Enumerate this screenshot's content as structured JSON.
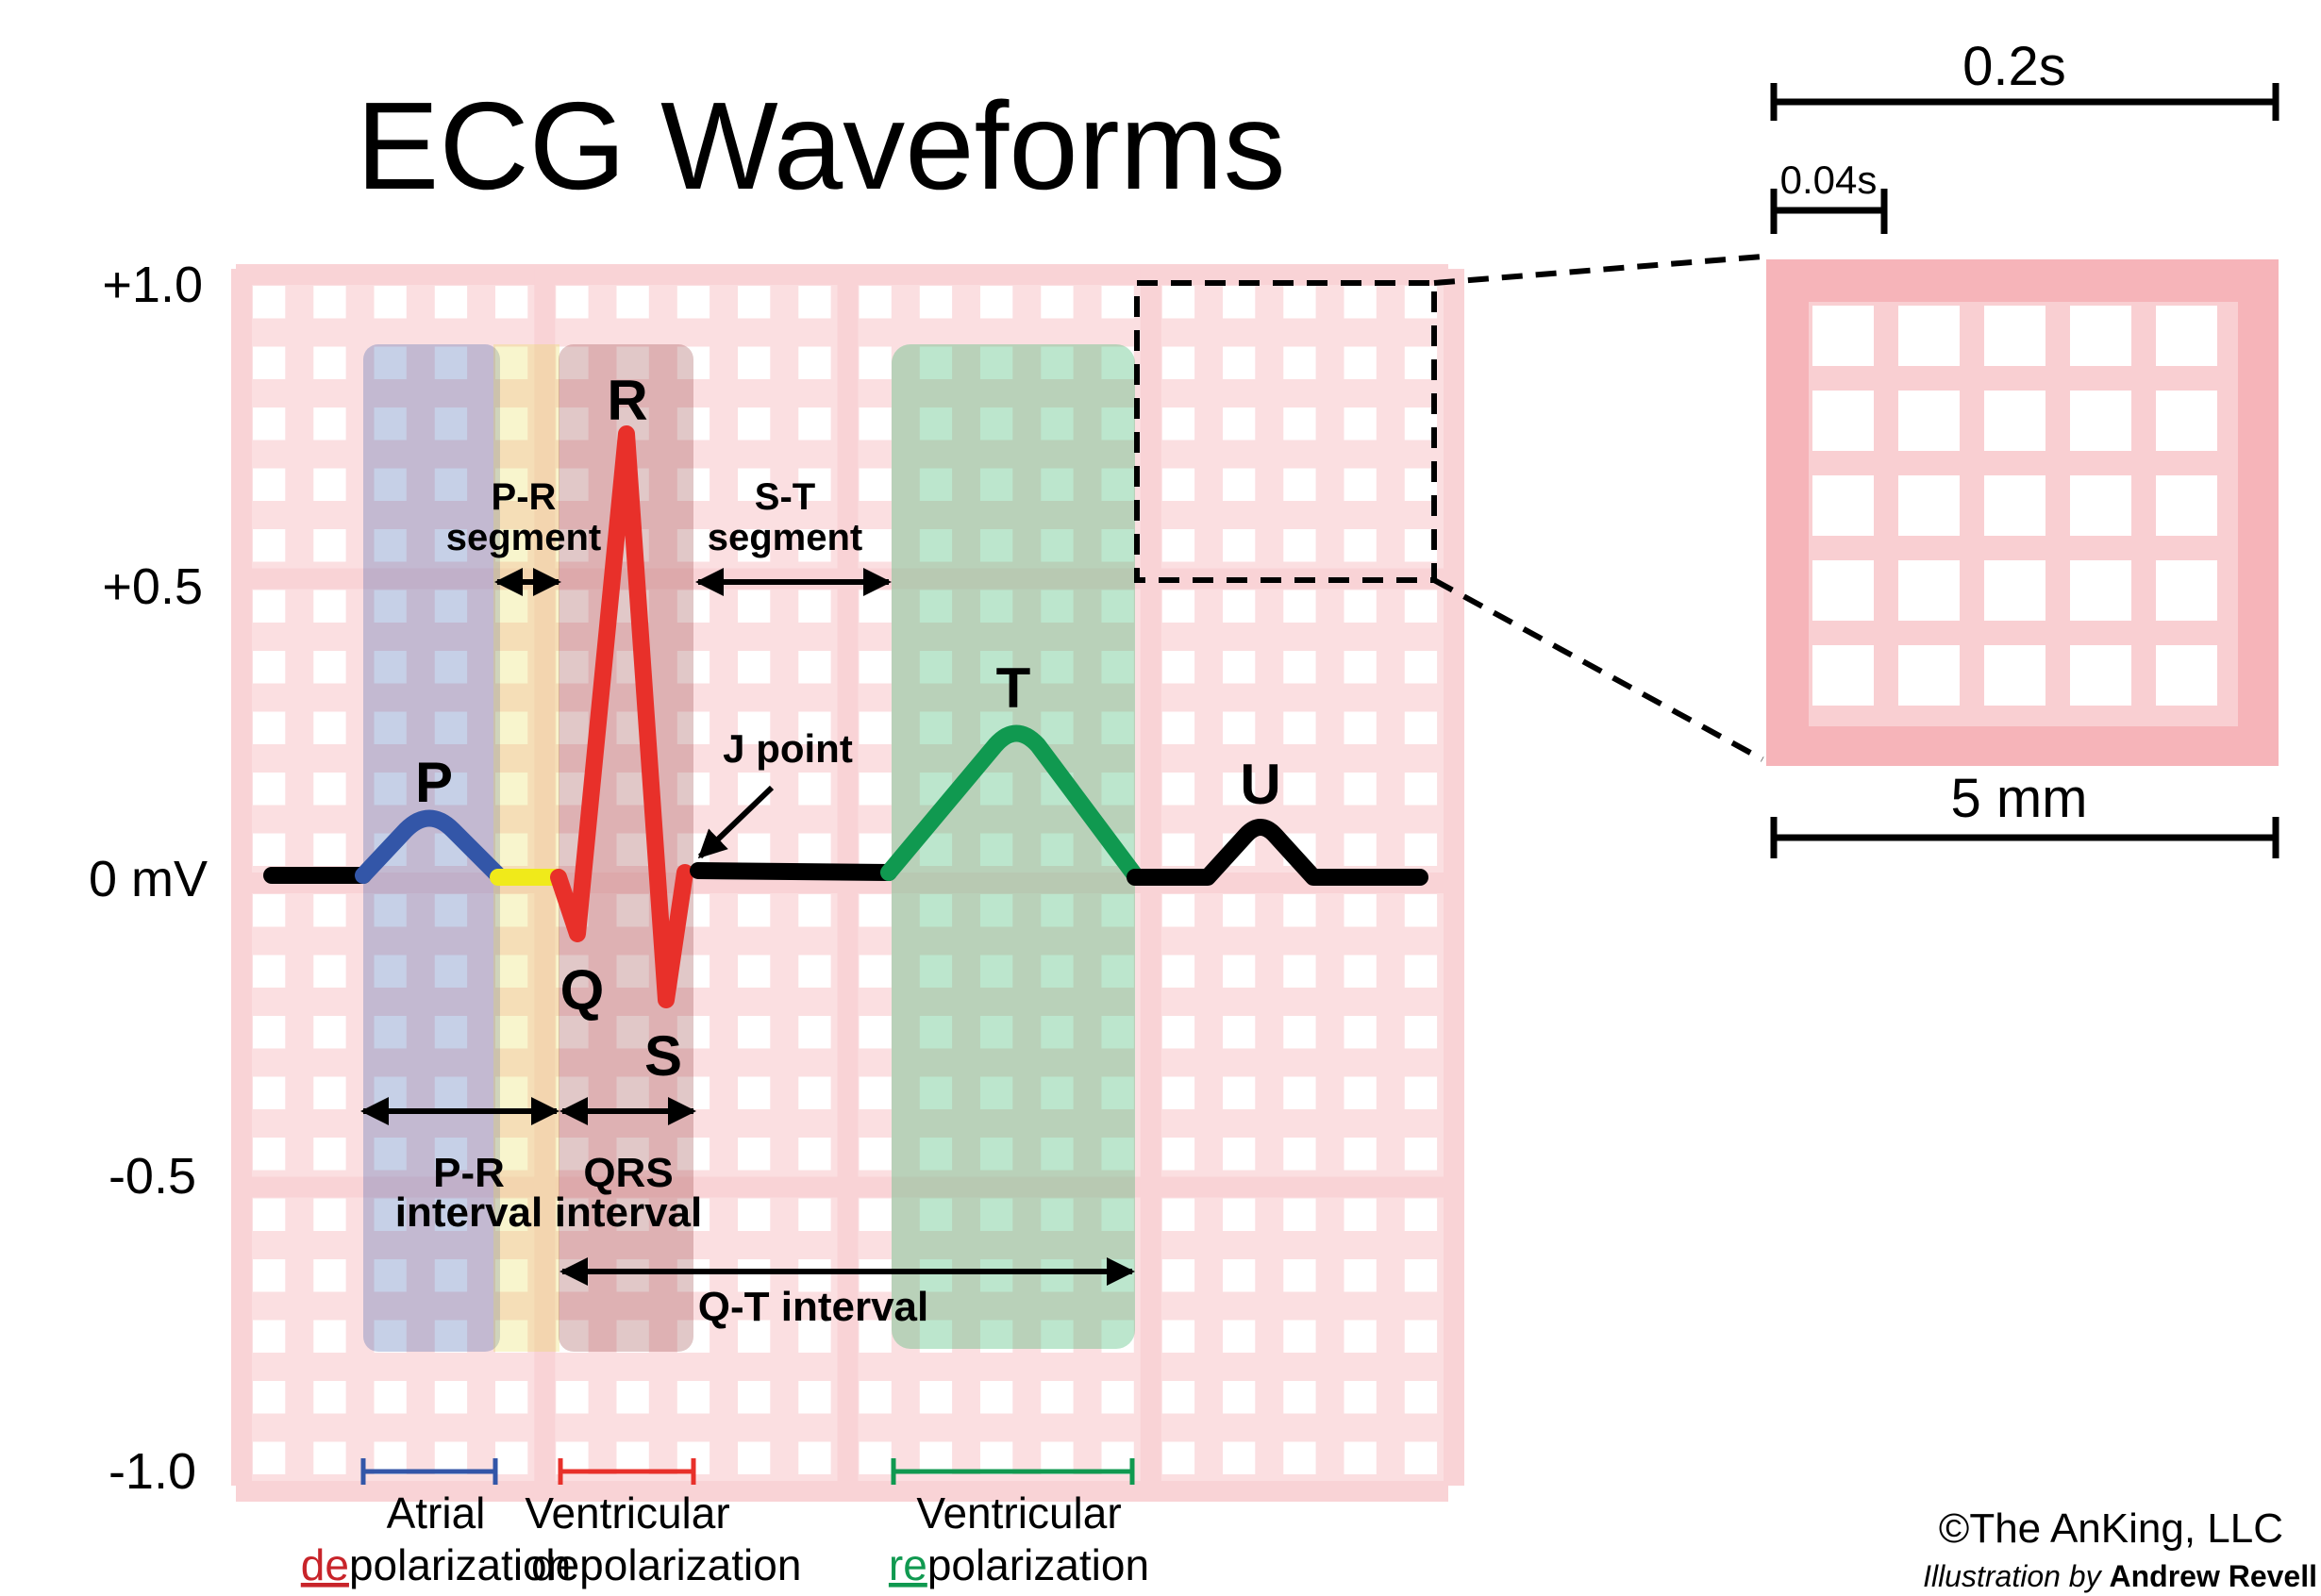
{
  "title": "ECG Waveforms",
  "y_axis": {
    "labels": [
      "+1.0",
      "+0.5",
      "0 mV",
      "-0.5",
      "-1.0"
    ]
  },
  "waves": {
    "p": "P",
    "q": "Q",
    "r": "R",
    "s": "S",
    "t": "T",
    "u": "U"
  },
  "annotations": {
    "pr_segment_line1": "P-R",
    "pr_segment_line2": "segment",
    "st_segment_line1": "S-T",
    "st_segment_line2": "segment",
    "j_point": "J point",
    "pr_interval_line1": "P-R",
    "pr_interval_line2": "interval",
    "qrs_interval_line1": "QRS",
    "qrs_interval_line2": "interval",
    "qt_interval": "Q-T interval"
  },
  "phases": {
    "atrial_line1": "Atrial",
    "atrial_prefix": "de",
    "atrial_rest": "polarization",
    "ventricular_line1": "Ventricular",
    "ventricular_dep_prefix": "de",
    "ventricular_dep_rest": "polarization",
    "ventricular_rep_line1": "Ventricular",
    "ventricular_rep_prefix": "re",
    "ventricular_rep_rest": "polarization"
  },
  "scale": {
    "large_time": "0.2s",
    "small_time": "0.04s",
    "distance": "5 mm"
  },
  "credits": {
    "copyright": "©The AnKing, LLC",
    "illustration_by": "Illustration by",
    "author": "Andrew Revell"
  },
  "colors": {
    "grid": "#f8c9cd",
    "grid_light": "#fbdfe1",
    "atrial": "#3356a8",
    "pr_segment": "#f0ea1a",
    "ventricular_dep": "#e8302a",
    "ventricular_rep": "#109950",
    "baseline": "#000000"
  }
}
